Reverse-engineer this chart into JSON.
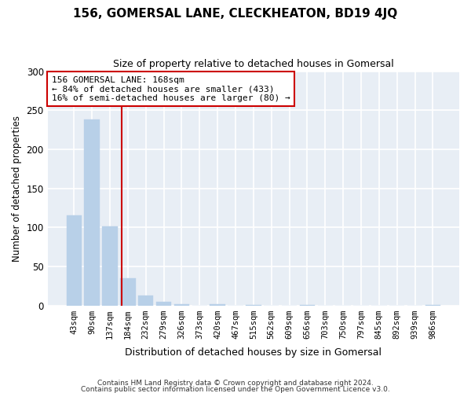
{
  "title": "156, GOMERSAL LANE, CLECKHEATON, BD19 4JQ",
  "subtitle": "Size of property relative to detached houses in Gomersal",
  "xlabel": "Distribution of detached houses by size in Gomersal",
  "ylabel": "Number of detached properties",
  "bar_values": [
    115,
    238,
    101,
    35,
    13,
    5,
    2,
    0,
    2,
    0,
    1,
    0,
    0,
    1,
    0,
    0,
    0,
    0,
    0,
    0,
    1
  ],
  "bar_labels": [
    "43sqm",
    "90sqm",
    "137sqm",
    "184sqm",
    "232sqm",
    "279sqm",
    "326sqm",
    "373sqm",
    "420sqm",
    "467sqm",
    "515sqm",
    "562sqm",
    "609sqm",
    "656sqm",
    "703sqm",
    "750sqm",
    "797sqm",
    "845sqm",
    "892sqm",
    "939sqm",
    "986sqm"
  ],
  "bar_color": "#b8d0e8",
  "vline_color": "#cc0000",
  "annotation_title": "156 GOMERSAL LANE: 168sqm",
  "annotation_line1": "← 84% of detached houses are smaller (433)",
  "annotation_line2": "16% of semi-detached houses are larger (80) →",
  "annotation_box_color": "#ffffff",
  "annotation_box_edge": "#cc0000",
  "ylim": [
    0,
    300
  ],
  "yticks": [
    0,
    50,
    100,
    150,
    200,
    250,
    300
  ],
  "footer1": "Contains HM Land Registry data © Crown copyright and database right 2024.",
  "footer2": "Contains public sector information licensed under the Open Government Licence v3.0.",
  "fig_background": "#ffffff",
  "plot_background": "#e8eef5",
  "grid_color": "#ffffff",
  "title_fontsize": 11,
  "subtitle_fontsize": 9
}
